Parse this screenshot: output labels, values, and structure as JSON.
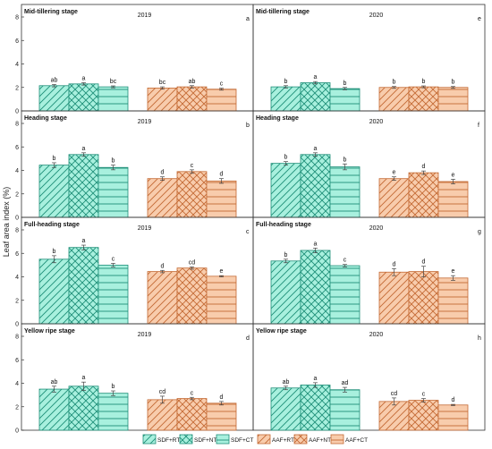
{
  "figure": {
    "ylabel": "Leaf area index (%)",
    "ylim": [
      0,
      8
    ],
    "yticks": [
      0,
      2,
      4,
      6,
      8
    ]
  },
  "colors": {
    "sdf_fill": "#a8f0de",
    "sdf_stroke": "#1e8f78",
    "aaf_fill": "#f8ccac",
    "aaf_stroke": "#c46a34",
    "frame": "#333333"
  },
  "legend": {
    "items": [
      {
        "label": "SDF+RT",
        "group": "SDF",
        "pattern": "diag-right"
      },
      {
        "label": "SDF+NT",
        "group": "SDF",
        "pattern": "cross"
      },
      {
        "label": "SDF+CT",
        "group": "SDF",
        "pattern": "horizontal"
      },
      {
        "label": "AAF+RT",
        "group": "AAF",
        "pattern": "diag-right"
      },
      {
        "label": "AAF+NT",
        "group": "AAF",
        "pattern": "cross"
      },
      {
        "label": "AAF+CT",
        "group": "AAF",
        "pattern": "horizontal"
      }
    ]
  },
  "chart_data": [
    {
      "type": "bar",
      "stage": "Mid-tillering stage",
      "year": "2019",
      "panel_letter": "a",
      "series": [
        {
          "name": "SDF+RT",
          "value": 2.15,
          "err": 0.1,
          "letter": "ab"
        },
        {
          "name": "SDF+NT",
          "value": 2.3,
          "err": 0.1,
          "letter": "a"
        },
        {
          "name": "SDF+CT",
          "value": 2.05,
          "err": 0.08,
          "letter": "bc"
        },
        {
          "name": "AAF+RT",
          "value": 1.95,
          "err": 0.1,
          "letter": "bc"
        },
        {
          "name": "AAF+NT",
          "value": 2.05,
          "err": 0.1,
          "letter": "ab"
        },
        {
          "name": "AAF+CT",
          "value": 1.85,
          "err": 0.08,
          "letter": "c"
        }
      ]
    },
    {
      "type": "bar",
      "stage": "Mid-tillering stage",
      "year": "2020",
      "panel_letter": "e",
      "series": [
        {
          "name": "SDF+RT",
          "value": 2.05,
          "err": 0.1,
          "letter": "b"
        },
        {
          "name": "SDF+NT",
          "value": 2.4,
          "err": 0.1,
          "letter": "a"
        },
        {
          "name": "SDF+CT",
          "value": 1.9,
          "err": 0.1,
          "letter": "b"
        },
        {
          "name": "AAF+RT",
          "value": 2.0,
          "err": 0.08,
          "letter": "b"
        },
        {
          "name": "AAF+NT",
          "value": 2.05,
          "err": 0.08,
          "letter": "b"
        },
        {
          "name": "AAF+CT",
          "value": 2.0,
          "err": 0.08,
          "letter": "b"
        }
      ]
    },
    {
      "type": "bar",
      "stage": "Heading stage",
      "year": "2019",
      "panel_letter": "b",
      "series": [
        {
          "name": "SDF+RT",
          "value": 4.45,
          "err": 0.2,
          "letter": "b"
        },
        {
          "name": "SDF+NT",
          "value": 5.35,
          "err": 0.15,
          "letter": "a"
        },
        {
          "name": "SDF+CT",
          "value": 4.25,
          "err": 0.2,
          "letter": "b"
        },
        {
          "name": "AAF+RT",
          "value": 3.3,
          "err": 0.15,
          "letter": "d"
        },
        {
          "name": "AAF+NT",
          "value": 3.9,
          "err": 0.15,
          "letter": "c"
        },
        {
          "name": "AAF+CT",
          "value": 3.1,
          "err": 0.2,
          "letter": "d"
        }
      ]
    },
    {
      "type": "bar",
      "stage": "Heading stage",
      "year": "2020",
      "panel_letter": "f",
      "series": [
        {
          "name": "SDF+RT",
          "value": 4.6,
          "err": 0.15,
          "letter": "b"
        },
        {
          "name": "SDF+NT",
          "value": 5.35,
          "err": 0.15,
          "letter": "a"
        },
        {
          "name": "SDF+CT",
          "value": 4.3,
          "err": 0.25,
          "letter": "b"
        },
        {
          "name": "AAF+RT",
          "value": 3.3,
          "err": 0.15,
          "letter": "e"
        },
        {
          "name": "AAF+NT",
          "value": 3.8,
          "err": 0.15,
          "letter": "d"
        },
        {
          "name": "AAF+CT",
          "value": 3.05,
          "err": 0.2,
          "letter": "e"
        }
      ]
    },
    {
      "type": "bar",
      "stage": "Full-heading stage",
      "year": "2019",
      "panel_letter": "c",
      "series": [
        {
          "name": "SDF+RT",
          "value": 5.5,
          "err": 0.3,
          "letter": "b"
        },
        {
          "name": "SDF+NT",
          "value": 6.5,
          "err": 0.2,
          "letter": "a"
        },
        {
          "name": "SDF+CT",
          "value": 5.0,
          "err": 0.15,
          "letter": "c"
        },
        {
          "name": "AAF+RT",
          "value": 4.45,
          "err": 0.1,
          "letter": "d"
        },
        {
          "name": "AAF+NT",
          "value": 4.75,
          "err": 0.1,
          "letter": "cd"
        },
        {
          "name": "AAF+CT",
          "value": 4.05,
          "err": 0.05,
          "letter": "e"
        }
      ]
    },
    {
      "type": "bar",
      "stage": "Full-heading stage",
      "year": "2020",
      "panel_letter": "g",
      "series": [
        {
          "name": "SDF+RT",
          "value": 5.35,
          "err": 0.15,
          "letter": "b"
        },
        {
          "name": "SDF+NT",
          "value": 6.25,
          "err": 0.2,
          "letter": "a"
        },
        {
          "name": "SDF+CT",
          "value": 4.95,
          "err": 0.1,
          "letter": "c"
        },
        {
          "name": "AAF+RT",
          "value": 4.4,
          "err": 0.3,
          "letter": "d"
        },
        {
          "name": "AAF+NT",
          "value": 4.45,
          "err": 0.45,
          "letter": "d"
        },
        {
          "name": "AAF+CT",
          "value": 3.9,
          "err": 0.2,
          "letter": "e"
        }
      ]
    },
    {
      "type": "bar",
      "stage": "Yellow ripe stage",
      "year": "2019",
      "panel_letter": "d",
      "series": [
        {
          "name": "SDF+RT",
          "value": 3.5,
          "err": 0.25,
          "letter": "ab"
        },
        {
          "name": "SDF+NT",
          "value": 3.75,
          "err": 0.35,
          "letter": "a"
        },
        {
          "name": "SDF+CT",
          "value": 3.15,
          "err": 0.2,
          "letter": "b"
        },
        {
          "name": "AAF+RT",
          "value": 2.6,
          "err": 0.3,
          "letter": "cd"
        },
        {
          "name": "AAF+NT",
          "value": 2.7,
          "err": 0.1,
          "letter": "c"
        },
        {
          "name": "AAF+CT",
          "value": 2.3,
          "err": 0.15,
          "letter": "d"
        }
      ]
    },
    {
      "type": "bar",
      "stage": "Yellow ripe stage",
      "year": "2020",
      "panel_letter": "h",
      "series": [
        {
          "name": "SDF+RT",
          "value": 3.6,
          "err": 0.15,
          "letter": "ab"
        },
        {
          "name": "SDF+NT",
          "value": 3.85,
          "err": 0.2,
          "letter": "a"
        },
        {
          "name": "SDF+CT",
          "value": 3.45,
          "err": 0.2,
          "letter": "ad"
        },
        {
          "name": "AAF+RT",
          "value": 2.45,
          "err": 0.3,
          "letter": "cd"
        },
        {
          "name": "AAF+NT",
          "value": 2.55,
          "err": 0.15,
          "letter": "c"
        },
        {
          "name": "AAF+CT",
          "value": 2.15,
          "err": 0.05,
          "letter": "d"
        }
      ]
    }
  ]
}
